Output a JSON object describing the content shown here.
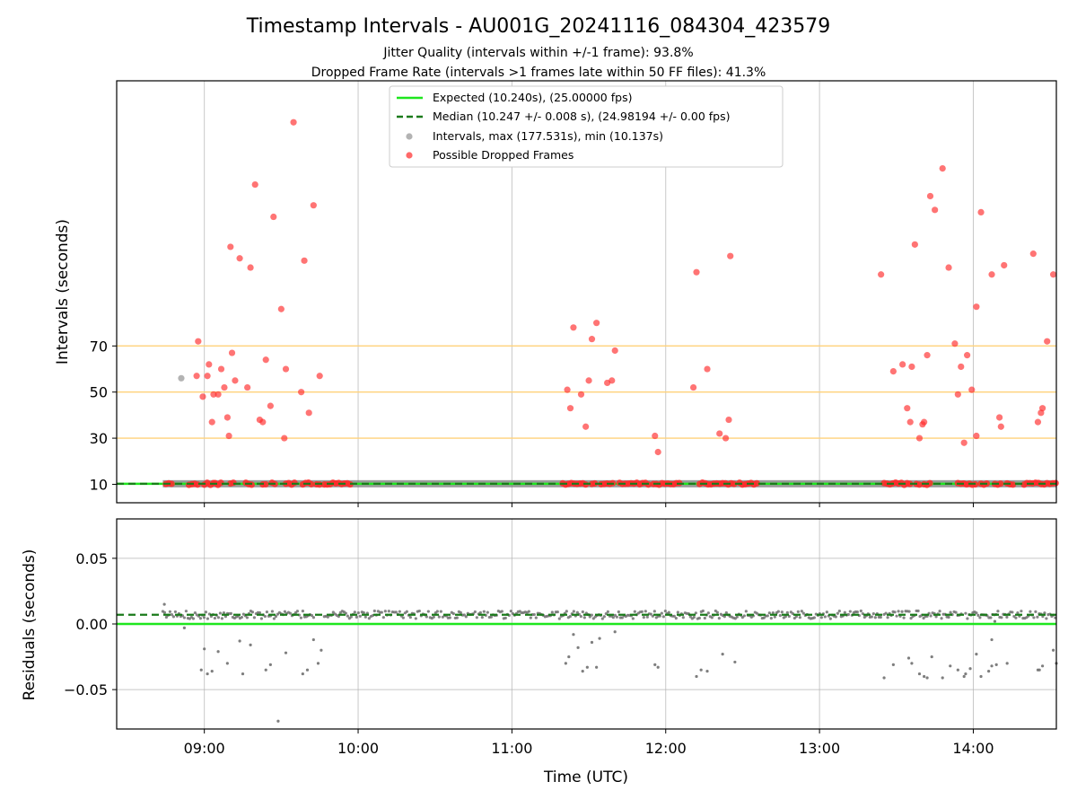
{
  "chart_data": [
    {
      "type": "scatter",
      "title": "Timestamp Intervals - AU001G_20241116_084304_423579",
      "subtitle_lines": [
        "Jitter Quality (intervals within +/-1 frame): 93.8%",
        "Dropped Frame Rate (intervals >1 frames late within 50 FF files): 41.3%"
      ],
      "ylabel": "Intervals (seconds)",
      "xlabel": "",
      "x_unit": "hours since 00:00 UTC",
      "xlim": [
        8.43,
        14.54
      ],
      "ylim": [
        2,
        185
      ],
      "yticks": [
        10,
        30,
        50,
        70
      ],
      "grid": true,
      "reference_lines": [
        30,
        50,
        70
      ],
      "reference_color": "#ffd27a",
      "legend_position": "top-center",
      "legend": [
        "Expected (10.240s), (25.00000 fps)",
        "Median (10.247 +/- 0.008 s), (24.98194 +/- 0.00 fps)",
        "Intervals, max (177.531s), min (10.137s)",
        "Possible Dropped Frames"
      ],
      "expected_interval": 10.24,
      "median_interval": 10.247,
      "baseline_segments": [
        [
          8.73,
          14.54
        ]
      ],
      "colors": {
        "expected": "#1ee61e",
        "median": "#1a7a1a",
        "intervals": "#808080",
        "dropped": "#ff2a2a"
      },
      "interval_outliers": [
        [
          8.85,
          56
        ]
      ],
      "dropped_frames_points": [
        [
          8.96,
          72
        ],
        [
          8.99,
          48
        ],
        [
          9.02,
          57
        ],
        [
          9.03,
          62
        ],
        [
          9.05,
          37
        ],
        [
          9.06,
          49
        ],
        [
          9.09,
          49
        ],
        [
          9.11,
          60
        ],
        [
          9.13,
          52
        ],
        [
          9.15,
          39
        ],
        [
          9.16,
          31
        ],
        [
          9.18,
          67
        ],
        [
          9.2,
          55
        ],
        [
          9.23,
          108
        ],
        [
          9.17,
          113
        ],
        [
          9.28,
          52
        ],
        [
          9.3,
          104
        ],
        [
          9.33,
          140
        ],
        [
          9.36,
          38
        ],
        [
          9.38,
          37
        ],
        [
          9.4,
          64
        ],
        [
          9.43,
          44
        ],
        [
          9.45,
          126
        ],
        [
          9.5,
          86
        ],
        [
          9.52,
          30
        ],
        [
          9.53,
          60
        ],
        [
          9.58,
          167
        ],
        [
          9.63,
          50
        ],
        [
          9.65,
          107
        ],
        [
          9.68,
          41
        ],
        [
          9.71,
          131
        ],
        [
          9.75,
          57
        ],
        [
          8.95,
          57
        ],
        [
          11.36,
          51
        ],
        [
          11.38,
          43
        ],
        [
          11.4,
          78
        ],
        [
          11.45,
          49
        ],
        [
          11.48,
          35
        ],
        [
          11.5,
          55
        ],
        [
          11.52,
          73
        ],
        [
          11.55,
          80
        ],
        [
          11.62,
          54
        ],
        [
          11.65,
          55
        ],
        [
          11.67,
          68
        ],
        [
          11.93,
          31
        ],
        [
          11.95,
          24
        ],
        [
          12.2,
          102
        ],
        [
          12.18,
          52
        ],
        [
          12.27,
          60
        ],
        [
          12.35,
          32
        ],
        [
          12.39,
          30
        ],
        [
          12.41,
          38
        ],
        [
          12.42,
          109
        ],
        [
          13.4,
          101
        ],
        [
          13.48,
          59
        ],
        [
          13.54,
          62
        ],
        [
          13.57,
          43
        ],
        [
          13.59,
          37
        ],
        [
          13.6,
          61
        ],
        [
          13.62,
          114
        ],
        [
          13.65,
          30
        ],
        [
          13.67,
          36
        ],
        [
          13.68,
          37
        ],
        [
          13.7,
          66
        ],
        [
          13.72,
          135
        ],
        [
          13.75,
          129
        ],
        [
          13.8,
          147
        ],
        [
          13.84,
          104
        ],
        [
          13.88,
          71
        ],
        [
          13.9,
          49
        ],
        [
          13.92,
          61
        ],
        [
          13.94,
          28
        ],
        [
          13.96,
          66
        ],
        [
          13.99,
          51
        ],
        [
          14.02,
          31
        ],
        [
          14.02,
          87
        ],
        [
          14.05,
          128
        ],
        [
          14.12,
          101
        ],
        [
          14.17,
          39
        ],
        [
          14.18,
          35
        ],
        [
          14.2,
          105
        ],
        [
          14.39,
          110
        ],
        [
          14.42,
          37
        ],
        [
          14.44,
          41
        ],
        [
          14.45,
          43
        ],
        [
          14.48,
          72
        ],
        [
          14.52,
          101
        ]
      ],
      "dropped_baseline_clusters": [
        [
          8.75,
          8.8
        ],
        [
          8.9,
          8.96
        ],
        [
          9.0,
          9.02
        ],
        [
          9.04,
          9.06
        ],
        [
          9.07,
          9.12
        ],
        [
          9.17,
          9.19
        ],
        [
          9.27,
          9.31
        ],
        [
          9.38,
          9.4
        ],
        [
          9.44,
          9.46
        ],
        [
          9.53,
          9.6
        ],
        [
          9.64,
          9.7
        ],
        [
          9.73,
          9.76
        ],
        [
          9.78,
          9.95
        ],
        [
          11.33,
          11.48
        ],
        [
          11.52,
          11.55
        ],
        [
          11.58,
          11.67
        ],
        [
          11.7,
          11.9
        ],
        [
          11.92,
          12.1
        ],
        [
          12.22,
          12.45
        ],
        [
          12.48,
          12.6
        ],
        [
          13.42,
          13.6
        ],
        [
          13.63,
          13.66
        ],
        [
          13.68,
          13.72
        ],
        [
          13.9,
          14.02
        ],
        [
          14.05,
          14.1
        ],
        [
          14.14,
          14.18
        ],
        [
          14.22,
          14.27
        ],
        [
          14.33,
          14.54
        ]
      ]
    },
    {
      "type": "scatter",
      "ylabel": "Residuals (seconds)",
      "xlabel": "Time (UTC)",
      "x_unit": "hours since 00:00 UTC",
      "xlim": [
        8.43,
        14.54
      ],
      "ylim": [
        -0.08,
        0.08
      ],
      "yticks": [
        0.05,
        0.0,
        -0.05
      ],
      "ytick_labels": [
        "0.05",
        "0.00",
        "−0.05"
      ],
      "xticks": [
        9,
        10,
        11,
        12,
        13,
        14
      ],
      "xtick_labels": [
        "09:00",
        "10:00",
        "11:00",
        "12:00",
        "13:00",
        "14:00"
      ],
      "grid": true,
      "expected_residual": 0.0,
      "median_residual": 0.007,
      "residual_band_segments": [
        [
          8.73,
          9.72
        ],
        [
          9.78,
          13.4
        ],
        [
          13.42,
          13.93
        ],
        [
          13.95,
          14.54
        ]
      ],
      "outlier_residuals": [
        [
          8.74,
          0.015
        ],
        [
          8.87,
          -0.003
        ],
        [
          8.98,
          -0.035
        ],
        [
          9.0,
          -0.019
        ],
        [
          9.02,
          -0.038
        ],
        [
          9.05,
          -0.036
        ],
        [
          9.09,
          -0.021
        ],
        [
          9.15,
          -0.03
        ],
        [
          9.23,
          -0.013
        ],
        [
          9.25,
          -0.038
        ],
        [
          9.3,
          -0.016
        ],
        [
          9.4,
          -0.035
        ],
        [
          9.43,
          -0.031
        ],
        [
          9.48,
          -0.074
        ],
        [
          9.53,
          -0.022
        ],
        [
          9.64,
          -0.038
        ],
        [
          9.67,
          -0.035
        ],
        [
          9.71,
          -0.012
        ],
        [
          9.74,
          -0.03
        ],
        [
          9.76,
          -0.02
        ],
        [
          11.35,
          -0.03
        ],
        [
          11.37,
          -0.025
        ],
        [
          11.4,
          -0.008
        ],
        [
          11.43,
          -0.018
        ],
        [
          11.46,
          -0.036
        ],
        [
          11.49,
          -0.033
        ],
        [
          11.52,
          -0.014
        ],
        [
          11.55,
          -0.033
        ],
        [
          11.57,
          -0.011
        ],
        [
          11.67,
          -0.006
        ],
        [
          11.93,
          -0.031
        ],
        [
          11.95,
          -0.033
        ],
        [
          12.2,
          -0.04
        ],
        [
          12.23,
          -0.035
        ],
        [
          12.27,
          -0.036
        ],
        [
          12.37,
          -0.023
        ],
        [
          12.45,
          -0.029
        ],
        [
          13.42,
          -0.041
        ],
        [
          13.48,
          -0.031
        ],
        [
          13.58,
          -0.026
        ],
        [
          13.6,
          -0.03
        ],
        [
          13.65,
          -0.038
        ],
        [
          13.68,
          -0.04
        ],
        [
          13.7,
          -0.041
        ],
        [
          13.73,
          -0.025
        ],
        [
          13.8,
          -0.041
        ],
        [
          13.85,
          -0.032
        ],
        [
          13.9,
          -0.035
        ],
        [
          13.94,
          -0.04
        ],
        [
          13.95,
          -0.038
        ],
        [
          13.98,
          -0.034
        ],
        [
          14.02,
          -0.023
        ],
        [
          14.05,
          -0.04
        ],
        [
          14.1,
          -0.036
        ],
        [
          14.12,
          -0.032
        ],
        [
          14.15,
          -0.031
        ],
        [
          14.22,
          -0.03
        ],
        [
          14.42,
          -0.035
        ],
        [
          14.43,
          -0.035
        ],
        [
          14.45,
          -0.032
        ],
        [
          14.52,
          -0.02
        ],
        [
          14.54,
          -0.03
        ],
        [
          14.12,
          -0.012
        ],
        [
          14.14,
          0.002
        ]
      ]
    }
  ]
}
